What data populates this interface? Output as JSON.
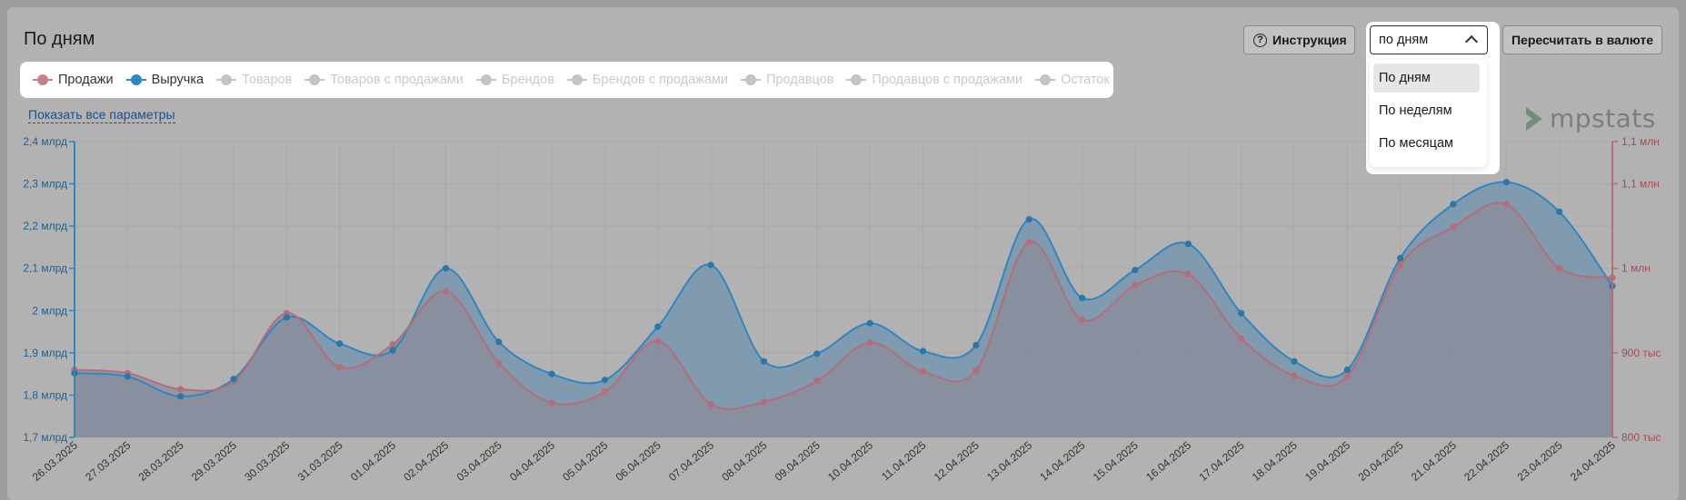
{
  "header": {
    "title": "По дням"
  },
  "toolbar": {
    "help_label": "Инструкция",
    "help_icon": "question-icon",
    "recalc_label": "Пересчитать в валюте",
    "period_select": {
      "value": "по дням",
      "options": [
        "По дням",
        "По неделям",
        "По месяцам"
      ],
      "selected_index": 0
    }
  },
  "legend": {
    "items": [
      {
        "label": "Продажи",
        "color": "#c8818b",
        "active": true
      },
      {
        "label": "Выручка",
        "color": "#2f86c0",
        "active": true
      },
      {
        "label": "Товаров",
        "color": "#c4c4c4",
        "active": false
      },
      {
        "label": "Товаров с продажами",
        "color": "#c4c4c4",
        "active": false
      },
      {
        "label": "Брендов",
        "color": "#c4c4c4",
        "active": false
      },
      {
        "label": "Брендов с продажами",
        "color": "#c4c4c4",
        "active": false
      },
      {
        "label": "Продавцов",
        "color": "#c4c4c4",
        "active": false
      },
      {
        "label": "Продавцов с продажами",
        "color": "#c4c4c4",
        "active": false
      },
      {
        "label": "Остаток",
        "color": "#c4c4c4",
        "active": false
      }
    ],
    "show_all_label": "Показать все параметры"
  },
  "logo": {
    "text": "mpstats",
    "icon": "mpstats-logo-icon"
  },
  "chart_data": {
    "type": "area",
    "x": [
      "26.03.2025",
      "27.03.2025",
      "28.03.2025",
      "29.03.2025",
      "30.03.2025",
      "31.03.2025",
      "01.04.2025",
      "02.04.2025",
      "03.04.2025",
      "04.04.2025",
      "05.04.2025",
      "06.04.2025",
      "07.04.2025",
      "08.04.2025",
      "09.04.2025",
      "10.04.2025",
      "11.04.2025",
      "12.04.2025",
      "13.04.2025",
      "14.04.2025",
      "15.04.2025",
      "16.04.2025",
      "17.04.2025",
      "18.04.2025",
      "19.04.2025",
      "20.04.2025",
      "21.04.2025",
      "22.04.2025",
      "23.04.2025",
      "24.04.2025"
    ],
    "series": [
      {
        "name": "Выручка",
        "axis": "left",
        "color": "#2f86c0",
        "values": [
          1.852,
          1.844,
          1.797,
          1.838,
          1.984,
          1.922,
          1.906,
          2.1,
          1.926,
          1.85,
          1.836,
          1.962,
          2.108,
          1.88,
          1.898,
          1.97,
          1.904,
          1.918,
          2.216,
          2.03,
          2.096,
          2.158,
          1.994,
          1.88,
          1.86,
          2.124,
          2.252,
          2.304,
          2.234,
          2.058
        ]
      },
      {
        "name": "Продажи",
        "axis": "right",
        "color": "#c8818b",
        "values": [
          880,
          876,
          857,
          866,
          947,
          883,
          910,
          973,
          888,
          841,
          854,
          914,
          839,
          842,
          867,
          912,
          878,
          879,
          1031,
          939,
          980,
          993,
          917,
          873,
          872,
          1004,
          1049,
          1076,
          1000,
          989
        ]
      }
    ],
    "y_left": {
      "min": 1.7,
      "max": 2.4,
      "ticks": [
        "2,4 млрд",
        "2,3 млрд",
        "2,2 млрд",
        "2,1 млрд",
        "2 млрд",
        "1,9 млрд",
        "1,8 млрд",
        "1,7 млрд"
      ]
    },
    "y_right": {
      "min": 800,
      "max": 1150,
      "ticks": [
        "1,1 млн",
        "1,1 млн",
        "1 млн",
        "900 тыс",
        "800 тыс"
      ],
      "tick_values": [
        1150,
        1100,
        1000,
        900,
        800
      ]
    },
    "grid": true
  }
}
